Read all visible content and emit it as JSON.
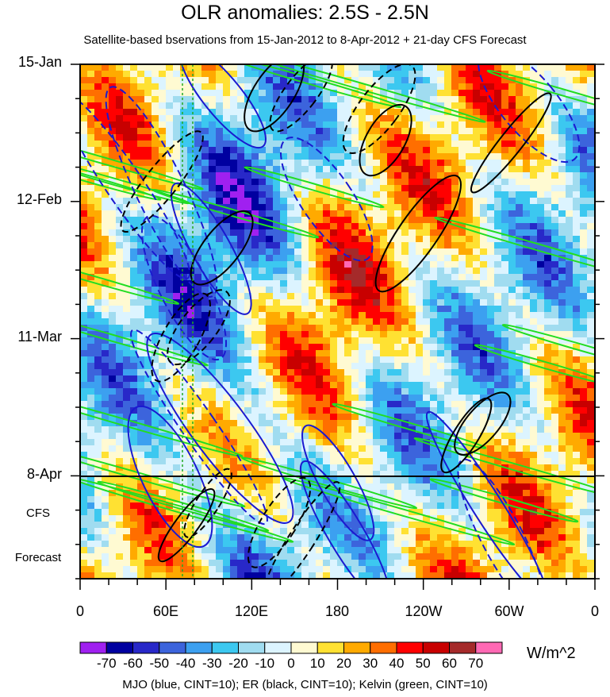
{
  "chart_data": {
    "type": "heatmap",
    "title": "OLR anomalies: 2.5S - 2.5N",
    "subtitle": "Satellite-based bservations from 15-Jan-2012 to 8-Apr-2012 + 21-day CFS Forecast",
    "x_ticks": [
      "0",
      "60E",
      "120E",
      "180",
      "120W",
      "60W",
      "0"
    ],
    "x_range": [
      0,
      360
    ],
    "y_ticks": [
      "15-Jan",
      "12-Feb",
      "11-Mar",
      "8-Apr"
    ],
    "forecast_label": [
      "CFS",
      "Forecast"
    ],
    "colorbar": {
      "labels": [
        "-70",
        "-60",
        "-50",
        "-40",
        "-30",
        "-20",
        "-10",
        "0",
        "10",
        "20",
        "30",
        "40",
        "50",
        "60",
        "70"
      ],
      "levels": [
        -70,
        -60,
        -50,
        -40,
        -30,
        -20,
        -10,
        0,
        10,
        20,
        30,
        40,
        50,
        60,
        70
      ],
      "colors": [
        "#a020f0",
        "#0000a0",
        "#2828c8",
        "#3c64dc",
        "#3ca0f0",
        "#3cc8f0",
        "#a0dcf0",
        "#dcf4ff",
        "#fffad2",
        "#ffe132",
        "#ffaa00",
        "#ff6e00",
        "#ff0000",
        "#c80000",
        "#a52a2a",
        "#ff69b4"
      ],
      "units": "W/m^2"
    },
    "contour_overlays": "MJO (blue, CINT=10); ER (black, CINT=10); Kelvin (green, CINT=10)"
  }
}
